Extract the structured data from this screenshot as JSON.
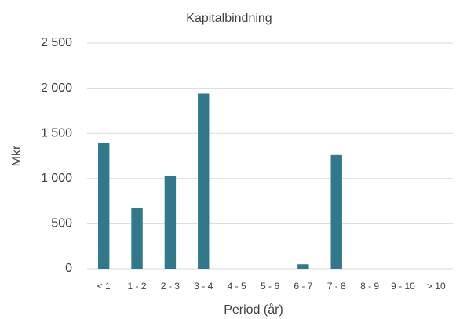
{
  "chart_data": {
    "type": "bar",
    "title": "Kapitalbindning",
    "ylabel": "Mkr",
    "xlabel": "Period (år)",
    "categories": [
      "< 1",
      "1 - 2",
      "2 - 3",
      "3 - 4",
      "4 - 5",
      "5 - 6",
      "6 - 7",
      "7 - 8",
      "8 - 9",
      "9 - 10",
      "> 10"
    ],
    "values": [
      1390,
      675,
      1025,
      1940,
      0,
      0,
      50,
      1260,
      0,
      0,
      0
    ],
    "color": "#31788a",
    "ylim": [
      0,
      2500
    ],
    "yticks": [
      0,
      500,
      {
        "value": 1000,
        "label": "1 000"
      },
      {
        "value": 1500,
        "label": "1 500"
      },
      {
        "value": 2000,
        "label": "2 000"
      },
      {
        "value": 2500,
        "label": "2 500"
      }
    ],
    "grid": true
  }
}
